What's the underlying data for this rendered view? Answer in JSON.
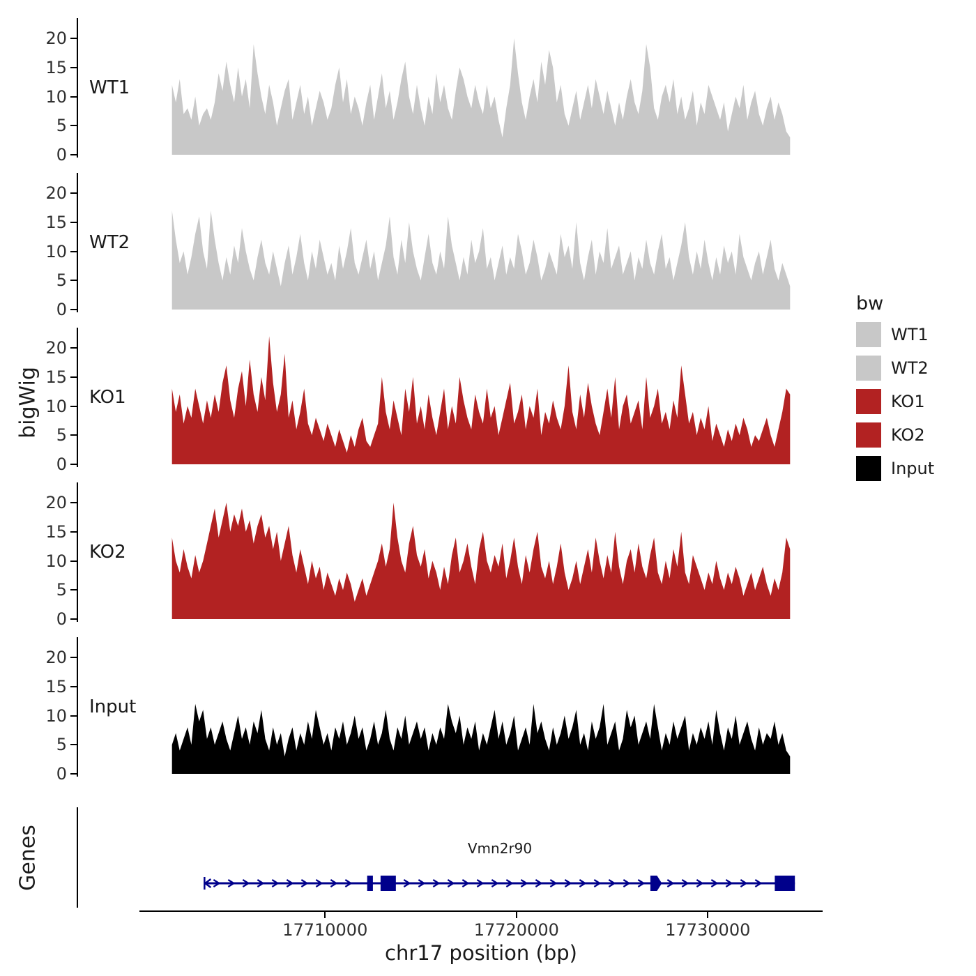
{
  "figure": {
    "y_axis_label": "bigWig",
    "genes_axis_label": "Genes",
    "x_axis_label": "chr17 position (bp)",
    "x_ticks": [
      17710000,
      17720000,
      17730000
    ],
    "x_range_bp": [
      17700300,
      17736000
    ],
    "legend": {
      "title": "bw",
      "entries": [
        {
          "label": "WT1",
          "color": "#C8C8C8"
        },
        {
          "label": "WT2",
          "color": "#C8C8C8"
        },
        {
          "label": "KO1",
          "color": "#B22222"
        },
        {
          "label": "KO2",
          "color": "#B22222"
        },
        {
          "label": "Input",
          "color": "#000000"
        }
      ]
    }
  },
  "chart_data": {
    "type": "area",
    "title": "",
    "xlabel": "chr17 position (bp)",
    "ylabel": "bigWig",
    "x_start": 17702000,
    "x_end": 17734300,
    "ylim": [
      0,
      23
    ],
    "y_ticks": [
      0,
      5,
      10,
      15,
      20
    ],
    "tracks": [
      {
        "name": "WT1",
        "color": "#C8C8C8",
        "values": [
          12,
          9,
          13,
          7,
          8,
          6,
          10,
          5,
          7,
          8,
          6,
          9,
          14,
          11,
          16,
          12,
          9,
          15,
          10,
          13,
          8,
          19,
          14,
          10,
          7,
          12,
          9,
          5,
          8,
          11,
          13,
          6,
          9,
          12,
          7,
          10,
          5,
          8,
          11,
          9,
          6,
          8,
          12,
          15,
          9,
          13,
          7,
          10,
          8,
          5,
          9,
          12,
          6,
          10,
          14,
          8,
          11,
          6,
          9,
          13,
          16,
          10,
          7,
          12,
          8,
          5,
          10,
          7,
          14,
          9,
          12,
          8,
          6,
          11,
          15,
          13,
          10,
          8,
          12,
          9,
          7,
          12,
          8,
          10,
          6,
          3,
          8,
          12,
          20,
          14,
          9,
          6,
          10,
          13,
          9,
          16,
          12,
          18,
          15,
          9,
          12,
          7,
          5,
          8,
          11,
          6,
          9,
          12,
          8,
          13,
          10,
          7,
          11,
          8,
          5,
          9,
          6,
          10,
          13,
          9,
          7,
          11,
          19,
          15,
          8,
          6,
          10,
          12,
          9,
          13,
          7,
          10,
          6,
          8,
          11,
          5,
          9,
          7,
          12,
          10,
          8,
          6,
          9,
          4,
          7,
          10,
          8,
          12,
          6,
          9,
          11,
          7,
          5,
          8,
          10,
          6,
          9,
          7,
          4,
          3
        ]
      },
      {
        "name": "WT2",
        "color": "#C8C8C8",
        "values": [
          17,
          12,
          8,
          10,
          6,
          9,
          13,
          16,
          10,
          7,
          17,
          12,
          8,
          5,
          9,
          6,
          11,
          8,
          14,
          10,
          7,
          5,
          9,
          12,
          8,
          6,
          10,
          7,
          4,
          8,
          11,
          6,
          9,
          13,
          8,
          5,
          10,
          7,
          12,
          9,
          6,
          8,
          5,
          11,
          7,
          10,
          14,
          8,
          6,
          9,
          12,
          7,
          10,
          5,
          8,
          11,
          16,
          9,
          6,
          12,
          8,
          15,
          10,
          7,
          5,
          9,
          13,
          8,
          6,
          10,
          7,
          16,
          11,
          8,
          5,
          9,
          6,
          12,
          8,
          10,
          14,
          7,
          9,
          5,
          8,
          11,
          6,
          9,
          7,
          13,
          10,
          6,
          8,
          12,
          9,
          5,
          7,
          10,
          8,
          6,
          13,
          9,
          11,
          7,
          15,
          8,
          5,
          9,
          12,
          6,
          10,
          8,
          14,
          7,
          9,
          11,
          6,
          8,
          10,
          5,
          9,
          7,
          12,
          8,
          6,
          10,
          13,
          7,
          9,
          5,
          8,
          11,
          15,
          9,
          6,
          10,
          7,
          12,
          8,
          5,
          9,
          6,
          11,
          8,
          10,
          6,
          13,
          9,
          7,
          5,
          8,
          10,
          6,
          9,
          12,
          7,
          5,
          8,
          6,
          4
        ]
      },
      {
        "name": "KO1",
        "color": "#B22222",
        "values": [
          13,
          9,
          12,
          7,
          10,
          8,
          13,
          10,
          7,
          11,
          8,
          12,
          9,
          14,
          17,
          11,
          8,
          13,
          16,
          10,
          18,
          12,
          9,
          15,
          11,
          22,
          14,
          9,
          12,
          19,
          8,
          11,
          6,
          9,
          13,
          7,
          5,
          8,
          6,
          4,
          7,
          5,
          3,
          6,
          4,
          2,
          5,
          3,
          6,
          8,
          4,
          3,
          5,
          7,
          15,
          9,
          6,
          11,
          8,
          5,
          13,
          9,
          15,
          7,
          10,
          6,
          12,
          8,
          5,
          9,
          13,
          6,
          10,
          7,
          15,
          11,
          8,
          6,
          12,
          9,
          7,
          13,
          8,
          10,
          5,
          8,
          11,
          14,
          7,
          9,
          12,
          6,
          10,
          8,
          13,
          5,
          9,
          7,
          11,
          8,
          6,
          10,
          17,
          9,
          6,
          12,
          8,
          14,
          10,
          7,
          5,
          9,
          13,
          8,
          15,
          6,
          10,
          12,
          7,
          9,
          11,
          6,
          15,
          8,
          10,
          13,
          7,
          9,
          6,
          11,
          8,
          17,
          12,
          7,
          9,
          5,
          8,
          6,
          10,
          4,
          7,
          5,
          3,
          6,
          4,
          7,
          5,
          8,
          6,
          3,
          5,
          4,
          6,
          8,
          5,
          3,
          6,
          9,
          13,
          12
        ]
      },
      {
        "name": "KO2",
        "color": "#B22222",
        "values": [
          14,
          10,
          8,
          12,
          9,
          7,
          11,
          8,
          10,
          13,
          16,
          19,
          14,
          17,
          20,
          15,
          18,
          16,
          19,
          15,
          17,
          13,
          16,
          18,
          14,
          16,
          12,
          15,
          10,
          13,
          16,
          11,
          8,
          12,
          9,
          6,
          10,
          7,
          9,
          5,
          8,
          6,
          4,
          7,
          5,
          8,
          6,
          3,
          5,
          7,
          4,
          6,
          8,
          10,
          13,
          9,
          12,
          20,
          14,
          10,
          8,
          13,
          16,
          11,
          9,
          12,
          7,
          10,
          8,
          5,
          9,
          6,
          11,
          14,
          8,
          10,
          13,
          9,
          6,
          12,
          15,
          10,
          8,
          11,
          9,
          13,
          7,
          10,
          14,
          9,
          6,
          11,
          8,
          12,
          15,
          9,
          7,
          10,
          6,
          9,
          13,
          8,
          5,
          7,
          10,
          6,
          9,
          12,
          8,
          14,
          10,
          7,
          11,
          8,
          15,
          9,
          6,
          10,
          12,
          8,
          13,
          9,
          7,
          11,
          14,
          8,
          6,
          10,
          7,
          12,
          9,
          15,
          8,
          6,
          11,
          9,
          7,
          5,
          8,
          6,
          10,
          7,
          5,
          8,
          6,
          9,
          7,
          4,
          6,
          8,
          5,
          7,
          9,
          6,
          4,
          7,
          5,
          8,
          14,
          12
        ]
      },
      {
        "name": "Input",
        "color": "#000000",
        "values": [
          5,
          7,
          4,
          6,
          8,
          5,
          12,
          9,
          11,
          6,
          8,
          5,
          7,
          9,
          6,
          4,
          7,
          10,
          6,
          8,
          5,
          9,
          7,
          11,
          6,
          4,
          8,
          5,
          7,
          3,
          6,
          8,
          4,
          7,
          5,
          9,
          6,
          11,
          8,
          5,
          7,
          4,
          8,
          6,
          9,
          5,
          7,
          10,
          6,
          8,
          4,
          6,
          9,
          5,
          7,
          11,
          6,
          4,
          8,
          6,
          10,
          5,
          7,
          9,
          6,
          8,
          4,
          7,
          5,
          8,
          6,
          12,
          9,
          7,
          10,
          5,
          8,
          6,
          9,
          4,
          7,
          5,
          8,
          11,
          6,
          9,
          5,
          7,
          10,
          4,
          6,
          8,
          5,
          12,
          7,
          9,
          6,
          4,
          8,
          5,
          7,
          10,
          6,
          8,
          11,
          5,
          7,
          4,
          9,
          6,
          8,
          12,
          5,
          7,
          9,
          4,
          6,
          11,
          8,
          10,
          5,
          7,
          9,
          6,
          12,
          8,
          4,
          7,
          5,
          9,
          6,
          8,
          10,
          4,
          7,
          5,
          8,
          6,
          9,
          5,
          11,
          7,
          4,
          8,
          6,
          10,
          5,
          7,
          9,
          6,
          4,
          8,
          5,
          7,
          6,
          9,
          5,
          7,
          4,
          3
        ]
      }
    ],
    "gene": {
      "name": "Vmn2r90",
      "strand": "+",
      "start": 17703700,
      "end": 17734550,
      "exons": [
        [
          17712200,
          17712500
        ],
        [
          17712900,
          17713700
        ],
        [
          17727000,
          17727600
        ],
        [
          17733500,
          17734550
        ]
      ],
      "color": "#00008B"
    }
  }
}
